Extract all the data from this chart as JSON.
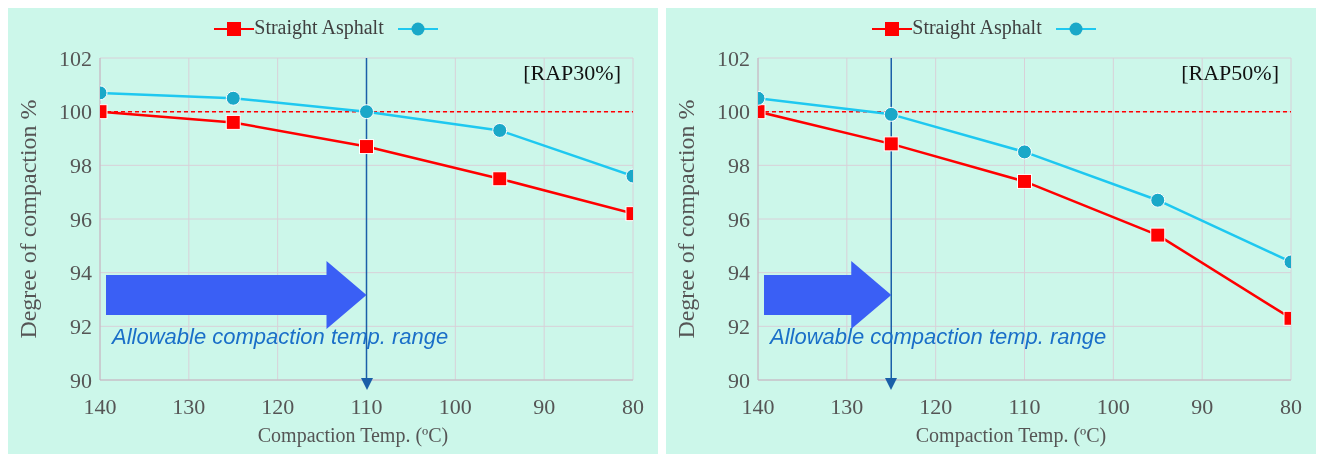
{
  "chart_data": [
    {
      "type": "line",
      "xlabel": "Compaction Temp. (ºC)",
      "ylabel": "Degree of compaction %",
      "x": [
        140,
        125,
        110,
        95,
        80
      ],
      "xlim": [
        140,
        80
      ],
      "xticks": [
        140,
        130,
        120,
        110,
        100,
        90,
        80
      ],
      "ylim": [
        90,
        102
      ],
      "yticks": [
        90,
        92,
        94,
        96,
        98,
        100,
        102
      ],
      "grid": true,
      "legend": "top",
      "line_style": "solid",
      "series": [
        {
          "name": "Straight Asphalt",
          "color": "#ff0000",
          "marker": "square",
          "values": [
            100.0,
            99.6,
            98.7,
            97.5,
            96.2
          ]
        },
        {
          "color": "#1ec8f0",
          "marker": "circle",
          "values": [
            100.7,
            100.5,
            100.0,
            99.3,
            97.6
          ]
        }
      ],
      "ref_lines": [
        {
          "axis": "y",
          "value": 100,
          "color": "#ff0000",
          "line_style": "dashed"
        },
        {
          "axis": "x",
          "value": 110,
          "color": "#1a5fa8",
          "line_style": "solid"
        }
      ],
      "annotations": [
        "[RAP30%]",
        "Allowable compaction temp. range"
      ]
    },
    {
      "type": "line",
      "xlabel": "Compaction Temp.  (ºC)",
      "ylabel": "Degree of compaction %",
      "x": [
        140,
        125,
        110,
        95,
        80
      ],
      "xlim": [
        140,
        80
      ],
      "xticks": [
        140,
        130,
        120,
        110,
        100,
        90,
        80
      ],
      "ylim": [
        90,
        102
      ],
      "yticks": [
        90,
        92,
        94,
        96,
        98,
        100,
        102
      ],
      "grid": true,
      "legend": "top",
      "line_style": "solid",
      "series": [
        {
          "name": "Straight Asphalt",
          "color": "#ff0000",
          "marker": "square",
          "values": [
            100.0,
            98.8,
            97.4,
            95.4,
            92.3
          ]
        },
        {
          "color": "#1ec8f0",
          "marker": "circle",
          "values": [
            100.5,
            99.9,
            98.5,
            96.7,
            94.4
          ]
        }
      ],
      "ref_lines": [
        {
          "axis": "y",
          "value": 100,
          "color": "#ff0000",
          "line_style": "dashed"
        },
        {
          "axis": "x",
          "value": 125,
          "color": "#1a5fa8",
          "line_style": "solid"
        }
      ],
      "annotations": [
        "[RAP50%]",
        "Allowable compaction temp. range"
      ]
    }
  ]
}
